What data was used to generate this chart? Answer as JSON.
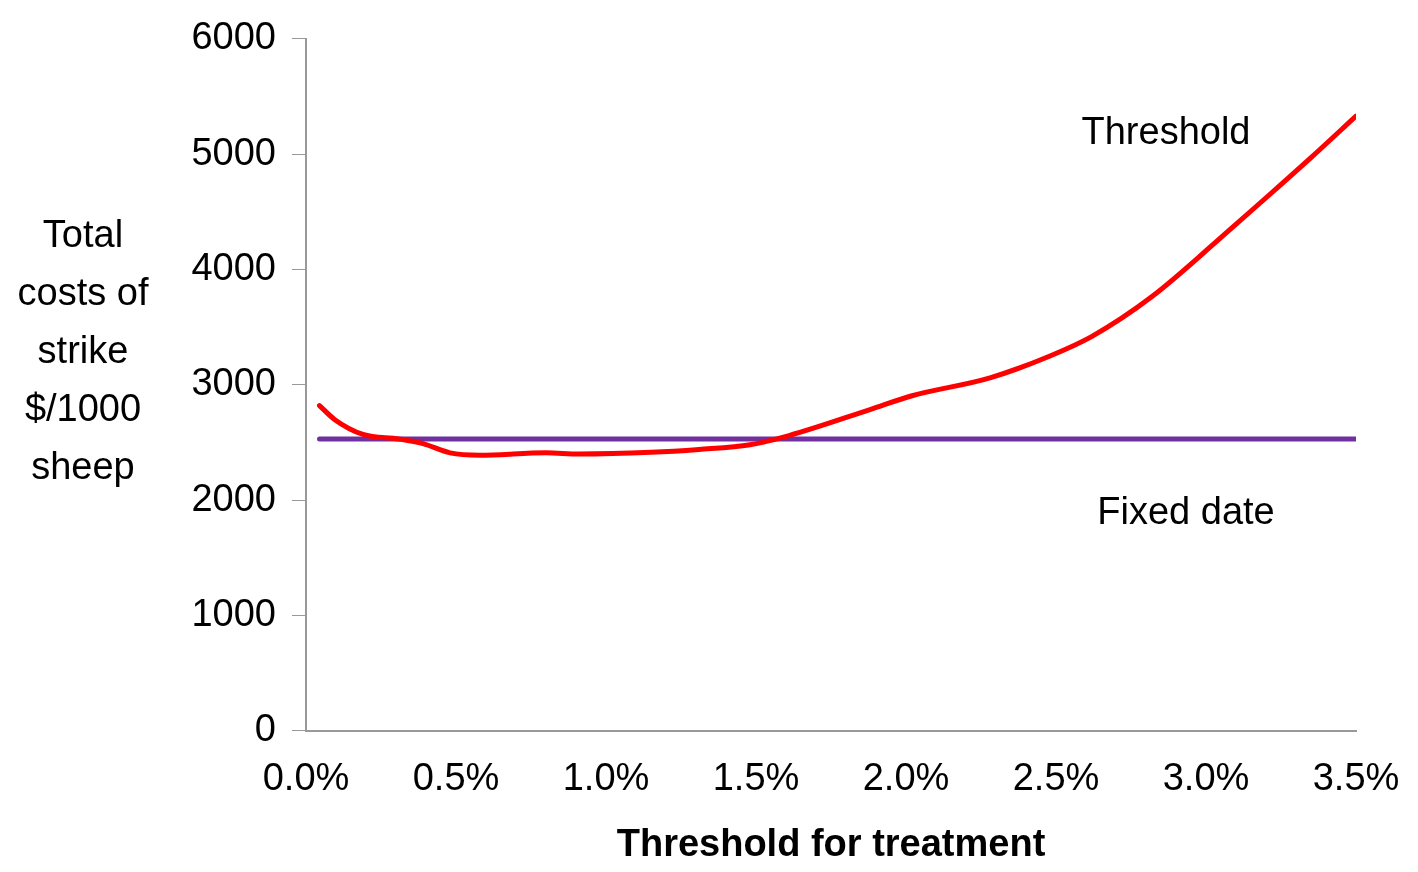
{
  "chart_data": {
    "type": "line",
    "xlabel": "Threshold for treatment",
    "ylabel": "Total costs of strike $/1000 sheep",
    "xlim": [
      0,
      3.5
    ],
    "xticks": [
      {
        "value": 0,
        "label": "0.0%"
      },
      {
        "value": 0.5,
        "label": "0.5%"
      },
      {
        "value": 1,
        "label": "1.0%"
      },
      {
        "value": 1.5,
        "label": "1.5%"
      },
      {
        "value": 2,
        "label": "2.0%"
      },
      {
        "value": 2.5,
        "label": "2.5%"
      },
      {
        "value": 3,
        "label": "3.0%"
      },
      {
        "value": 3.5,
        "label": "3.5%"
      }
    ],
    "ylim": [
      0,
      6000
    ],
    "yticks": [
      0,
      1000,
      2000,
      3000,
      4000,
      5000,
      6000
    ],
    "grid": false,
    "legend": false,
    "marker": "none",
    "line_style": "solid",
    "series": [
      {
        "name": "Threshold",
        "color": "#ff0000",
        "x": [
          0.045,
          0.095,
          0.19,
          0.31,
          0.39,
          0.48,
          0.58,
          0.8,
          0.91,
          1.15,
          1.31,
          1.48,
          1.61,
          1.88,
          2.02,
          2.28,
          2.48,
          2.62,
          2.82,
          3.09,
          3.35,
          3.5
        ],
        "values": [
          2820,
          2700,
          2570,
          2530,
          2490,
          2410,
          2390,
          2410,
          2400,
          2415,
          2440,
          2480,
          2560,
          2785,
          2905,
          3060,
          3250,
          3420,
          3765,
          4370,
          4970,
          5330
        ]
      },
      {
        "name": "Fixed date",
        "color": "#7030a0",
        "x": [
          0.045,
          3.5
        ],
        "values": [
          2530,
          2530
        ]
      }
    ]
  }
}
